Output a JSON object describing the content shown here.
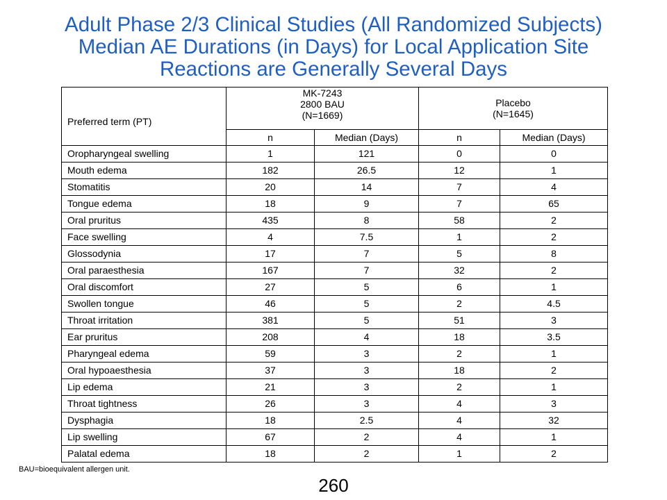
{
  "title_lines": [
    "Adult Phase 2/3 Clinical Studies (All Randomized Subjects)",
    "Median AE Durations (in Days) for Local Application Site",
    "Reactions are Generally Several Days"
  ],
  "table": {
    "pt_header": "Preferred term (PT)",
    "group1": [
      "MK-7243",
      "2800 BAU",
      "(N=1669)"
    ],
    "group2": [
      "Placebo",
      "(N=1645)"
    ],
    "col_n": "n",
    "col_median": "Median (Days)",
    "rows": [
      [
        "Oropharyngeal swelling",
        "1",
        "121",
        "0",
        "0"
      ],
      [
        "Mouth edema",
        "182",
        "26.5",
        "12",
        "1"
      ],
      [
        "Stomatitis",
        "20",
        "14",
        "7",
        "4"
      ],
      [
        "Tongue edema",
        "18",
        "9",
        "7",
        "65"
      ],
      [
        "Oral pruritus",
        "435",
        "8",
        "58",
        "2"
      ],
      [
        "Face swelling",
        "4",
        "7.5",
        "1",
        "2"
      ],
      [
        "Glossodynia",
        "17",
        "7",
        "5",
        "8"
      ],
      [
        "Oral paraesthesia",
        "167",
        "7",
        "32",
        "2"
      ],
      [
        "Oral discomfort",
        "27",
        "5",
        "6",
        "1"
      ],
      [
        "Swollen tongue",
        "46",
        "5",
        "2",
        "4.5"
      ],
      [
        "Throat irritation",
        "381",
        "5",
        "51",
        "3"
      ],
      [
        "Ear pruritus",
        "208",
        "4",
        "18",
        "3.5"
      ],
      [
        "Pharyngeal edema",
        "59",
        "3",
        "2",
        "1"
      ],
      [
        "Oral hypoaesthesia",
        "37",
        "3",
        "18",
        "2"
      ],
      [
        "Lip edema",
        "21",
        "3",
        "2",
        "1"
      ],
      [
        "Throat tightness",
        "26",
        "3",
        "4",
        "3"
      ],
      [
        "Dysphagia",
        "18",
        "2.5",
        "4",
        "32"
      ],
      [
        "Lip swelling",
        "67",
        "2",
        "4",
        "1"
      ],
      [
        "Palatal edema",
        "18",
        "2",
        "1",
        "2"
      ]
    ]
  },
  "footnote": "BAU=bioequivalent  allergen unit.",
  "page_number": "260"
}
